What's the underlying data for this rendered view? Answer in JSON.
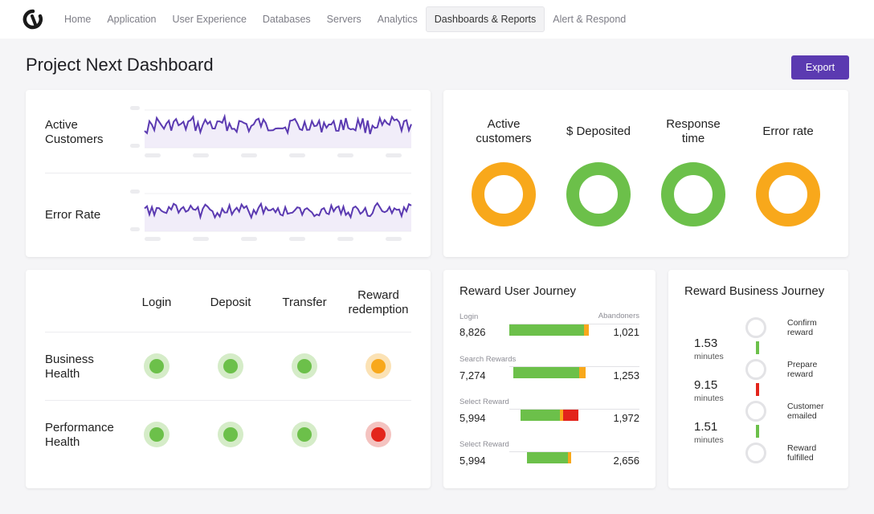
{
  "nav": {
    "logo_icon": "logo-mark-icon",
    "items": [
      {
        "label": "Home"
      },
      {
        "label": "Application"
      },
      {
        "label": "User Experience"
      },
      {
        "label": "Databases"
      },
      {
        "label": "Servers"
      },
      {
        "label": "Analytics"
      },
      {
        "label": "Dashboards & Reports",
        "active": true
      },
      {
        "label": "Alert & Respond"
      }
    ]
  },
  "page": {
    "title": "Project Next Dashboard",
    "export_label": "Export"
  },
  "sparklines": [
    {
      "label_line1": "Active",
      "label_line2": "Customers"
    },
    {
      "label_line1": "Error Rate",
      "label_line2": ""
    }
  ],
  "status_rings": [
    {
      "label_line1": "Active",
      "label_line2": "customers",
      "status": "warning",
      "color": "#f8a81b"
    },
    {
      "label_line1": "$ Deposited",
      "label_line2": "",
      "status": "ok",
      "color": "#6cc04a"
    },
    {
      "label_line1": "Response",
      "label_line2": "time",
      "status": "ok",
      "color": "#6cc04a"
    },
    {
      "label_line1": "Error rate",
      "label_line2": "",
      "status": "warning",
      "color": "#f8a81b"
    }
  ],
  "health_matrix": {
    "columns": [
      {
        "line1": "Login",
        "line2": ""
      },
      {
        "line1": "Deposit",
        "line2": ""
      },
      {
        "line1": "Transfer",
        "line2": ""
      },
      {
        "line1": "Reward",
        "line2": "redemption"
      }
    ],
    "rows": [
      {
        "line1": "Business",
        "line2": "Health",
        "statuses": [
          "ok",
          "ok",
          "ok",
          "warning"
        ]
      },
      {
        "line1": "Performance",
        "line2": "Health",
        "statuses": [
          "ok",
          "ok",
          "ok",
          "critical"
        ]
      }
    ]
  },
  "colors": {
    "ok": "#6cc04a",
    "ok_halo": "#d5ecc8",
    "warning": "#f8a81b",
    "warning_halo": "#fbe2b5",
    "critical": "#e3241b",
    "critical_halo": "#f4c3c0",
    "accent": "#5b3ab1",
    "line": "#5b3ab1"
  },
  "reward_user_journey": {
    "title": "Reward User Journey",
    "abandoners_label": "Abandoners",
    "steps": [
      {
        "step": "Login",
        "count": "8,826",
        "abandoners": "1,021"
      },
      {
        "step": "Search Rewards",
        "count": "7,274",
        "abandoners": "1,253"
      },
      {
        "step": "Select Reward",
        "count": "5,994",
        "abandoners": "1,972"
      },
      {
        "step": "Select Reward",
        "count": "5,994",
        "abandoners": "2,656"
      }
    ]
  },
  "reward_business_journey": {
    "title": "Reward Business Journey",
    "durations": [
      {
        "value": "1.53",
        "unit": "minutes"
      },
      {
        "value": "9.15",
        "unit": "minutes"
      },
      {
        "value": "1.51",
        "unit": "minutes"
      }
    ],
    "steps": [
      {
        "line1": "Confirm",
        "line2": "reward"
      },
      {
        "line1": "Prepare",
        "line2": "reward"
      },
      {
        "line1": "Customer",
        "line2": "emailed"
      },
      {
        "line1": "Reward",
        "line2": "fulfilled"
      }
    ],
    "link_statuses": [
      "ok",
      "critical",
      "ok"
    ]
  }
}
